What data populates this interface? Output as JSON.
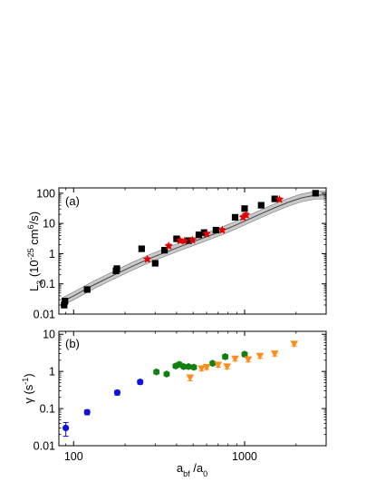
{
  "figure": {
    "x_axis": {
      "label_main": "a",
      "label_sub": "bf",
      "label_rest": " /a",
      "label_sub2": "0"
    },
    "x_ticks": [
      {
        "value": 100,
        "label": "100"
      },
      {
        "value": 1000,
        "label": "1000"
      }
    ]
  },
  "chart_data": [
    {
      "type": "scatter",
      "panel": "(a)",
      "x_scale": "log",
      "y_scale": "log",
      "xlim": [
        82,
        3000
      ],
      "ylim": [
        0.01,
        150
      ],
      "ylabel": {
        "main": "L",
        "sub": "3",
        "rest1": " (10",
        "sup1": "-25",
        "rest2": " cm",
        "sup2": "6",
        "rest3": "/s)"
      },
      "y_ticks": [
        {
          "value": 0.01,
          "label": "0.01"
        },
        {
          "value": 0.1,
          "label": "0.1"
        },
        {
          "value": 1,
          "label": "1"
        },
        {
          "value": 10,
          "label": "10"
        },
        {
          "value": 100,
          "label": "100"
        }
      ],
      "grid": false,
      "series": [
        {
          "color": "#000000",
          "marker": "square",
          "points": [
            {
              "x": 88,
              "y": 0.02,
              "err": 0.004
            },
            {
              "x": 89,
              "y": 0.027,
              "err": 0.006
            },
            {
              "x": 120,
              "y": 0.065,
              "err": 0.008
            },
            {
              "x": 177,
              "y": 0.27,
              "err": 0.05
            },
            {
              "x": 179,
              "y": 0.32,
              "err": 0.06
            },
            {
              "x": 250,
              "y": 1.45,
              "err": 0.2
            },
            {
              "x": 300,
              "y": 0.48,
              "err": 0.06
            },
            {
              "x": 340,
              "y": 1.3,
              "err": 0.2
            },
            {
              "x": 400,
              "y": 3.1,
              "err": 0.5
            },
            {
              "x": 470,
              "y": 2.7,
              "err": 0.4
            },
            {
              "x": 540,
              "y": 4.2,
              "err": 0.6
            },
            {
              "x": 580,
              "y": 5.0,
              "err": 0.7
            },
            {
              "x": 680,
              "y": 6.0,
              "err": 0.8
            },
            {
              "x": 880,
              "y": 16.0,
              "err": 2.0
            },
            {
              "x": 1000,
              "y": 31.0,
              "err": 4.0
            },
            {
              "x": 1250,
              "y": 40.0,
              "err": 5.0
            },
            {
              "x": 1500,
              "y": 65.0,
              "err": 8.0
            },
            {
              "x": 2600,
              "y": 100.0,
              "err": 12.0
            }
          ]
        },
        {
          "color": "#e00000",
          "marker": "star",
          "points": [
            {
              "x": 270,
              "y": 0.65,
              "err": 0.08
            },
            {
              "x": 360,
              "y": 1.8,
              "err": 0.25
            },
            {
              "x": 420,
              "y": 2.7,
              "err": 0.4
            },
            {
              "x": 445,
              "y": 2.6,
              "err": 0.35
            },
            {
              "x": 495,
              "y": 2.8,
              "err": 0.4
            },
            {
              "x": 600,
              "y": 4.5,
              "err": 0.6
            },
            {
              "x": 740,
              "y": 6.0,
              "err": 0.8
            },
            {
              "x": 980,
              "y": 16.0,
              "err": 2.5
            },
            {
              "x": 1020,
              "y": 19.0,
              "err": 3.0
            },
            {
              "x": 1600,
              "y": 62.0,
              "err": 8.0
            }
          ]
        }
      ],
      "fit_band": {
        "x": [
          85,
          100,
          130,
          170,
          220,
          280,
          350,
          430,
          520,
          620,
          740,
          880,
          1050,
          1250,
          1500,
          1800,
          2150,
          2600,
          3000
        ],
        "y": [
          0.025,
          0.04,
          0.09,
          0.19,
          0.38,
          0.7,
          1.15,
          1.8,
          2.7,
          3.9,
          5.7,
          8.6,
          13.5,
          21,
          33,
          50,
          70,
          86,
          88
        ],
        "rel_width": 0.35
      }
    },
    {
      "type": "scatter",
      "panel": "(b)",
      "x_scale": "log",
      "y_scale": "log",
      "xlim": [
        82,
        3000
      ],
      "ylim": [
        0.01,
        12
      ],
      "ylabel": {
        "main": "γ (s",
        "sup1": "-1",
        "rest1": ")"
      },
      "y_ticks": [
        {
          "value": 0.01,
          "label": "0.01"
        },
        {
          "value": 0.1,
          "label": "0.1"
        },
        {
          "value": 1,
          "label": "1"
        },
        {
          "value": 10,
          "label": "10"
        }
      ],
      "grid": false,
      "series": [
        {
          "color": "#1010e0",
          "marker": "circle",
          "points": [
            {
              "x": 90,
              "y": 0.03,
              "err": 0.012
            },
            {
              "x": 120,
              "y": 0.08,
              "err": 0.012
            },
            {
              "x": 180,
              "y": 0.27,
              "err": 0.04
            },
            {
              "x": 245,
              "y": 0.52,
              "err": 0.07
            }
          ]
        },
        {
          "color": "#108010",
          "marker": "hexagon",
          "points": [
            {
              "x": 305,
              "y": 0.97,
              "err": 0.12
            },
            {
              "x": 350,
              "y": 0.85,
              "err": 0.1
            },
            {
              "x": 395,
              "y": 1.4,
              "err": 0.18
            },
            {
              "x": 415,
              "y": 1.55,
              "err": 0.2
            },
            {
              "x": 440,
              "y": 1.35,
              "err": 0.17
            },
            {
              "x": 470,
              "y": 1.35,
              "err": 0.17
            },
            {
              "x": 505,
              "y": 1.3,
              "err": 0.16
            },
            {
              "x": 650,
              "y": 1.65,
              "err": 0.2
            },
            {
              "x": 770,
              "y": 2.5,
              "err": 0.35
            },
            {
              "x": 1000,
              "y": 2.9,
              "err": 0.4
            }
          ]
        },
        {
          "color": "#ff8c1a",
          "marker": "triangle-down",
          "points": [
            {
              "x": 480,
              "y": 0.68,
              "err": 0.12
            },
            {
              "x": 560,
              "y": 1.2,
              "err": 0.15
            },
            {
              "x": 600,
              "y": 1.3,
              "err": 0.16
            },
            {
              "x": 700,
              "y": 1.5,
              "err": 0.2
            },
            {
              "x": 790,
              "y": 1.35,
              "err": 0.18
            },
            {
              "x": 880,
              "y": 2.2,
              "err": 0.3
            },
            {
              "x": 1050,
              "y": 2.1,
              "err": 0.3
            },
            {
              "x": 1230,
              "y": 2.6,
              "err": 0.35
            },
            {
              "x": 1500,
              "y": 3.0,
              "err": 0.4
            },
            {
              "x": 1950,
              "y": 5.5,
              "err": 0.7
            }
          ]
        }
      ]
    }
  ]
}
